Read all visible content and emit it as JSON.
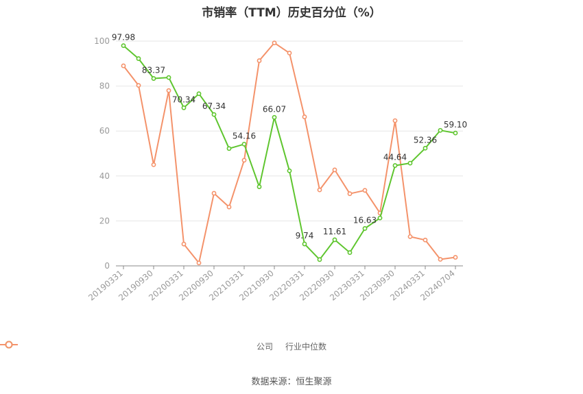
{
  "title": "市销率（TTM）历史百分位（%）",
  "source": "数据来源：恒生聚源",
  "colors": {
    "company": "#5ec52e",
    "industry": "#f4926a",
    "axis": "#999999",
    "grid": "#e6e6e6"
  },
  "chart_data": {
    "type": "line",
    "ylim": [
      0,
      100
    ],
    "yticks": [
      0,
      20,
      40,
      60,
      80,
      100
    ],
    "xtick_labels": [
      "20190331",
      "20190930",
      "20200331",
      "20200930",
      "20210331",
      "20210930",
      "20220331",
      "20220930",
      "20230331",
      "20230930",
      "20240331",
      "20240704"
    ],
    "xtick_positions": [
      0,
      2,
      4,
      6,
      8,
      10,
      12,
      14,
      16,
      18,
      20,
      22
    ],
    "x_count": 23,
    "grid": true,
    "legend_position": "bottom",
    "series": [
      {
        "name": "公司",
        "values": [
          97.98,
          92.2,
          83.37,
          83.8,
          70.34,
          76.6,
          67.34,
          52.2,
          54.16,
          35.2,
          66.07,
          42.3,
          9.74,
          2.8,
          11.61,
          5.9,
          16.63,
          21.3,
          44.64,
          45.7,
          52.36,
          60.3,
          59.1
        ],
        "labels": [
          "97.98",
          "",
          "83.37",
          "",
          "70.34",
          "",
          "67.34",
          "",
          "54.16",
          "",
          "66.07",
          "",
          "9.74",
          "",
          "11.61",
          "",
          "16.63",
          "",
          "44.64",
          "",
          "52.36",
          "",
          "59.10"
        ]
      },
      {
        "name": "行业中位数",
        "values": [
          89.0,
          80.3,
          45.0,
          78.0,
          9.7,
          1.3,
          32.3,
          26.2,
          47.0,
          91.3,
          99.2,
          94.7,
          66.3,
          33.8,
          42.7,
          32.1,
          33.6,
          23.5,
          64.6,
          13.0,
          11.5,
          2.9,
          3.8
        ]
      }
    ]
  }
}
